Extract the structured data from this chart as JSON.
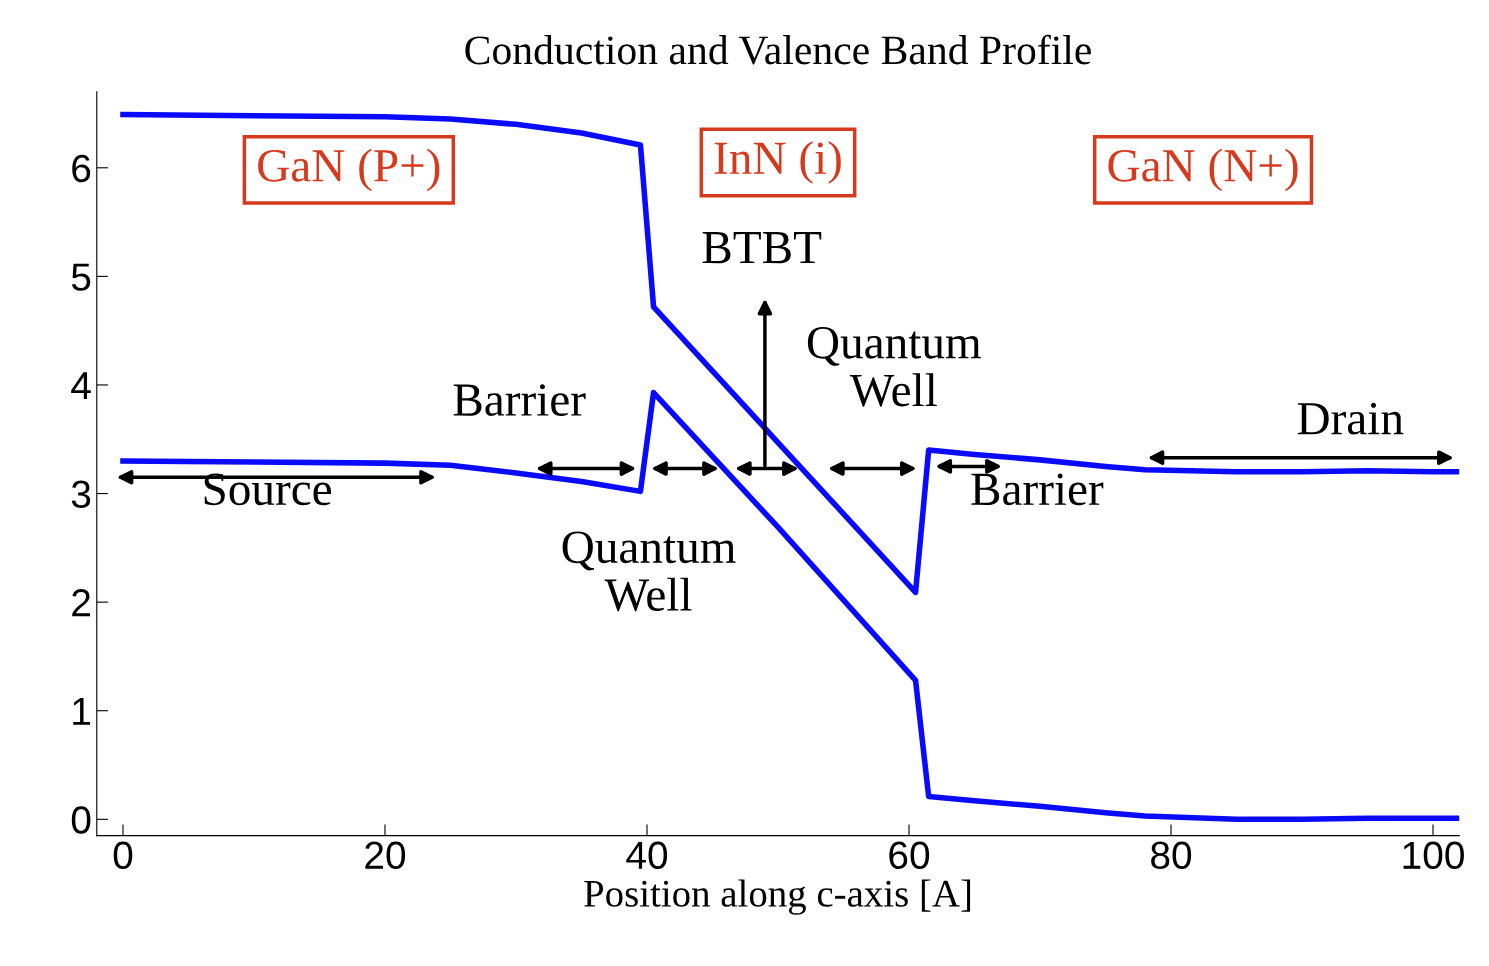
{
  "chart_data": {
    "type": "line",
    "title": "Conduction and Valence Band Profile",
    "xlabel": "Position along c-axis [A]",
    "xlim": [
      -2,
      102
    ],
    "ylim": [
      -0.15,
      6.7
    ],
    "xticks": [
      0,
      20,
      40,
      60,
      80,
      100
    ],
    "yticks": [
      0,
      1,
      2,
      3,
      4,
      5,
      6
    ],
    "grid": false,
    "legend": false,
    "marker": "none",
    "line_style": "solid",
    "series": [
      {
        "color": "#0a0aff",
        "x": [
          0,
          10,
          20,
          25,
          30,
          35,
          39.5,
          40.5,
          50,
          60.5,
          61.5,
          65,
          70,
          75,
          78,
          85,
          90,
          95,
          100,
          102
        ],
        "values": [
          6.49,
          6.48,
          6.47,
          6.45,
          6.4,
          6.32,
          6.21,
          4.72,
          3.47,
          2.09,
          3.4,
          3.36,
          3.31,
          3.25,
          3.22,
          3.2,
          3.2,
          3.21,
          3.2,
          3.2
        ]
      },
      {
        "color": "#0a0aff",
        "x": [
          0,
          10,
          20,
          25,
          30,
          35,
          39.5,
          40.5,
          50,
          60.5,
          61.5,
          65,
          70,
          75,
          78,
          85,
          90,
          95,
          100,
          102
        ],
        "values": [
          3.3,
          3.29,
          3.28,
          3.26,
          3.19,
          3.11,
          3.02,
          3.93,
          2.69,
          1.28,
          0.21,
          0.17,
          0.12,
          0.06,
          0.03,
          0.0,
          0.0,
          0.01,
          0.01,
          0.01
        ]
      }
    ],
    "annotations": [
      "GaN (P+)",
      "InN (i)",
      "GaN (N+)",
      "BTBT",
      "Quantum\nWell",
      "Barrier",
      "Drain",
      "Source",
      "Quantum\nWell",
      "Barrier"
    ]
  }
}
